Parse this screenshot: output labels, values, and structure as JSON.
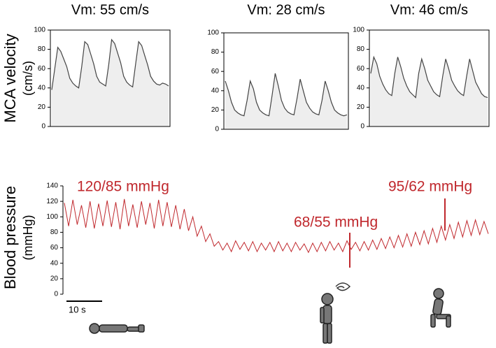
{
  "chart_data": [
    {
      "type": "area",
      "title": "Vm: 55 cm/s",
      "ylabel": [
        "MCA velocity",
        "(cm/s)"
      ],
      "ylim": [
        0,
        100
      ],
      "yticks": [
        0,
        20,
        40,
        60,
        80,
        100
      ],
      "color": "#444444",
      "fill": "#eeeeee",
      "values": [
        38,
        60,
        82,
        78,
        70,
        62,
        50,
        45,
        42,
        40,
        62,
        88,
        85,
        75,
        65,
        52,
        46,
        44,
        42,
        64,
        90,
        86,
        76,
        66,
        52,
        46,
        43,
        41,
        65,
        88,
        84,
        74,
        64,
        52,
        47,
        44,
        43,
        45,
        44,
        42
      ]
    },
    {
      "type": "area",
      "title": "Vm: 28 cm/s",
      "ylim": [
        0,
        100
      ],
      "yticks": [
        0,
        20,
        40,
        60,
        80,
        100
      ],
      "color": "#444444",
      "fill": "#eeeeee",
      "values": [
        50,
        40,
        28,
        20,
        17,
        15,
        14,
        30,
        50,
        42,
        28,
        20,
        17,
        15,
        14,
        35,
        58,
        45,
        30,
        22,
        18,
        16,
        15,
        32,
        52,
        40,
        28,
        22,
        18,
        16,
        15,
        30,
        50,
        40,
        28,
        20,
        17,
        15,
        14,
        15
      ]
    },
    {
      "type": "area",
      "title": "Vm: 46 cm/s",
      "ylim": [
        0,
        100
      ],
      "yticks": [
        0,
        20,
        40,
        60,
        80,
        100
      ],
      "color": "#444444",
      "fill": "#eeeeee",
      "values": [
        55,
        72,
        65,
        52,
        44,
        38,
        34,
        32,
        55,
        72,
        62,
        50,
        42,
        36,
        33,
        30,
        55,
        70,
        60,
        48,
        42,
        36,
        33,
        31,
        52,
        70,
        60,
        48,
        42,
        37,
        34,
        32,
        52,
        70,
        58,
        46,
        40,
        34,
        31,
        30
      ]
    },
    {
      "type": "line",
      "ylabel": [
        "Blood pressure",
        "(mmHg)"
      ],
      "ylim": [
        0,
        140
      ],
      "yticks": [
        0,
        20,
        40,
        60,
        80,
        100,
        120,
        140
      ],
      "color": "#c0282d",
      "annotations": [
        "120/85 mmHg",
        "68/55 mmHg",
        "95/62 mmHg"
      ],
      "scale_bar_label": "10 s",
      "values": [
        118,
        88,
        122,
        90,
        115,
        86,
        120,
        85,
        117,
        88,
        121,
        87,
        119,
        84,
        123,
        88,
        116,
        86,
        120,
        90,
        118,
        85,
        122,
        88,
        119,
        87,
        115,
        84,
        110,
        82,
        100,
        75,
        88,
        68,
        78,
        62,
        68,
        57,
        66,
        55,
        69,
        58,
        67,
        56,
        68,
        55,
        66,
        57,
        67,
        55,
        68,
        56,
        66,
        55,
        67,
        57,
        65,
        54,
        66,
        55,
        67,
        56,
        68,
        57,
        66,
        55,
        69,
        58,
        67,
        56,
        68,
        57,
        70,
        58,
        72,
        59,
        74,
        60,
        76,
        61,
        78,
        62,
        80,
        64,
        82,
        65,
        85,
        67,
        88,
        70,
        90,
        72,
        93,
        74,
        95,
        76,
        96,
        77,
        94,
        78
      ]
    }
  ]
}
